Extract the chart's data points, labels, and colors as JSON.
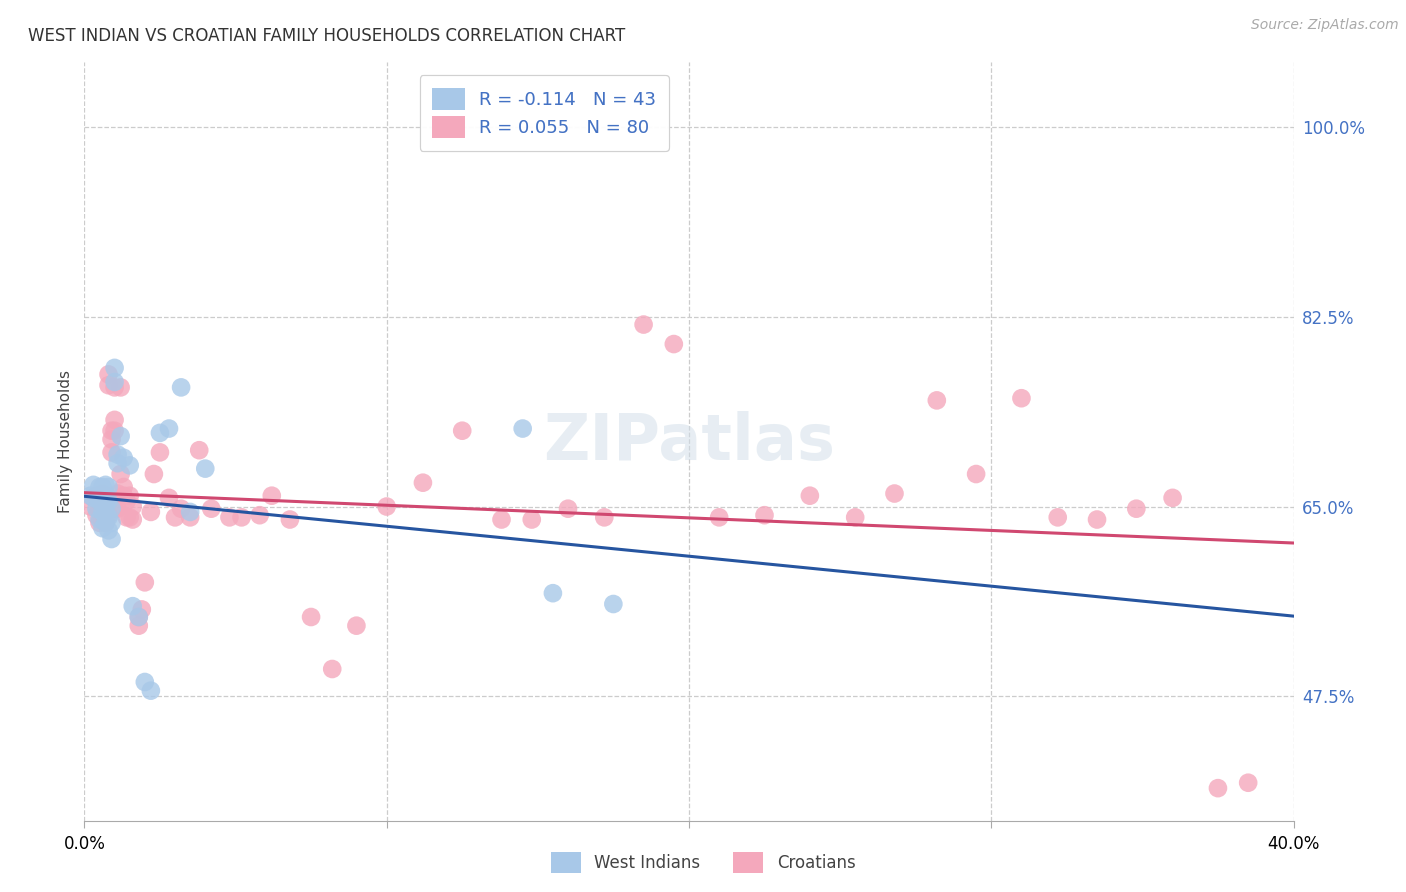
{
  "title": "WEST INDIAN VS CROATIAN FAMILY HOUSEHOLDS CORRELATION CHART",
  "source": "Source: ZipAtlas.com",
  "ylabel": "Family Households",
  "yticks_labels": [
    "47.5%",
    "65.0%",
    "82.5%",
    "100.0%"
  ],
  "ytick_vals": [
    0.475,
    0.65,
    0.825,
    1.0
  ],
  "xmin": 0.0,
  "xmax": 0.4,
  "ymin": 0.36,
  "ymax": 1.06,
  "legend_line1": "R = -0.114   N = 43",
  "legend_line2": "R = 0.055   N = 80",
  "west_indian_color": "#a8c8e8",
  "croatian_color": "#f4a8bc",
  "trend_blue": "#2655a0",
  "trend_pink": "#d04870",
  "watermark": "ZIPatlas",
  "west_indian_x": [
    0.002,
    0.003,
    0.003,
    0.004,
    0.004,
    0.005,
    0.005,
    0.005,
    0.006,
    0.006,
    0.006,
    0.006,
    0.007,
    0.007,
    0.007,
    0.007,
    0.007,
    0.008,
    0.008,
    0.008,
    0.008,
    0.009,
    0.009,
    0.009,
    0.01,
    0.01,
    0.011,
    0.011,
    0.012,
    0.013,
    0.015,
    0.016,
    0.018,
    0.02,
    0.022,
    0.025,
    0.028,
    0.032,
    0.035,
    0.04,
    0.145,
    0.155,
    0.175
  ],
  "west_indian_y": [
    0.66,
    0.658,
    0.67,
    0.648,
    0.66,
    0.638,
    0.655,
    0.668,
    0.63,
    0.645,
    0.655,
    0.668,
    0.635,
    0.65,
    0.662,
    0.67,
    0.645,
    0.628,
    0.64,
    0.655,
    0.668,
    0.62,
    0.635,
    0.648,
    0.765,
    0.778,
    0.69,
    0.698,
    0.715,
    0.695,
    0.688,
    0.558,
    0.548,
    0.488,
    0.48,
    0.718,
    0.722,
    0.76,
    0.645,
    0.685,
    0.722,
    0.57,
    0.56
  ],
  "croatian_x": [
    0.002,
    0.003,
    0.004,
    0.004,
    0.005,
    0.005,
    0.005,
    0.006,
    0.006,
    0.006,
    0.007,
    0.007,
    0.007,
    0.008,
    0.008,
    0.008,
    0.008,
    0.009,
    0.009,
    0.009,
    0.01,
    0.01,
    0.01,
    0.01,
    0.011,
    0.011,
    0.012,
    0.012,
    0.013,
    0.013,
    0.014,
    0.014,
    0.015,
    0.015,
    0.016,
    0.016,
    0.018,
    0.018,
    0.019,
    0.02,
    0.022,
    0.023,
    0.025,
    0.028,
    0.03,
    0.032,
    0.035,
    0.038,
    0.042,
    0.048,
    0.052,
    0.058,
    0.062,
    0.068,
    0.075,
    0.082,
    0.09,
    0.1,
    0.112,
    0.125,
    0.138,
    0.148,
    0.16,
    0.172,
    0.185,
    0.195,
    0.21,
    0.225,
    0.24,
    0.255,
    0.268,
    0.282,
    0.295,
    0.31,
    0.322,
    0.335,
    0.348,
    0.36,
    0.375,
    0.385
  ],
  "croatian_y": [
    0.65,
    0.658,
    0.642,
    0.66,
    0.635,
    0.648,
    0.66,
    0.638,
    0.65,
    0.662,
    0.635,
    0.648,
    0.66,
    0.762,
    0.772,
    0.642,
    0.658,
    0.7,
    0.72,
    0.712,
    0.73,
    0.72,
    0.648,
    0.76,
    0.662,
    0.648,
    0.68,
    0.76,
    0.668,
    0.66,
    0.64,
    0.655,
    0.64,
    0.66,
    0.638,
    0.65,
    0.548,
    0.54,
    0.555,
    0.58,
    0.645,
    0.68,
    0.7,
    0.658,
    0.64,
    0.648,
    0.64,
    0.702,
    0.648,
    0.64,
    0.64,
    0.642,
    0.66,
    0.638,
    0.548,
    0.5,
    0.54,
    0.65,
    0.672,
    0.72,
    0.638,
    0.638,
    0.648,
    0.64,
    0.818,
    0.8,
    0.64,
    0.642,
    0.66,
    0.64,
    0.662,
    0.748,
    0.68,
    0.75,
    0.64,
    0.638,
    0.648,
    0.658,
    0.39,
    0.395
  ]
}
